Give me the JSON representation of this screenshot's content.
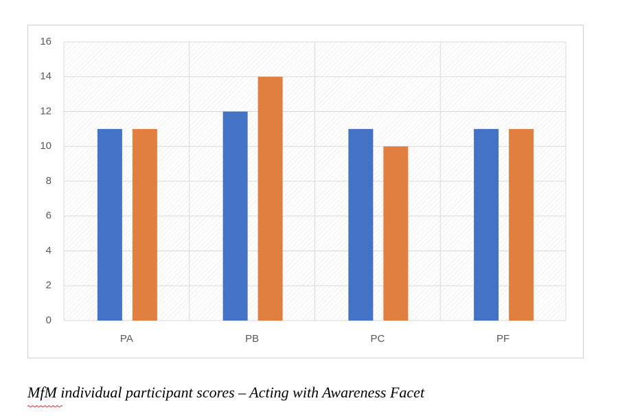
{
  "chart_data": {
    "type": "bar",
    "title": "MfM individual participant scores – Acting with Awareness Facet",
    "categories": [
      "PA",
      "PB",
      "PC",
      "PF"
    ],
    "series": [
      {
        "color": "#4472c4",
        "values": [
          11,
          12,
          11,
          11
        ]
      },
      {
        "color": "#e07f3f",
        "values": [
          11,
          14,
          10,
          11
        ]
      }
    ],
    "ylim": [
      0,
      16
    ],
    "yticks": [
      0,
      2,
      4,
      6,
      8,
      10,
      12,
      14,
      16
    ],
    "grid": true
  }
}
